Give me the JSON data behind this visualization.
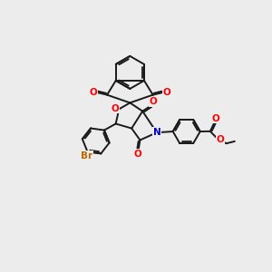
{
  "bg_color": "#ececec",
  "bond_color": "#1a1a1a",
  "bond_lw": 1.4,
  "atom_colors": {
    "O": "#ff0000",
    "N": "#0000cc",
    "Br": "#bb6600"
  },
  "fs": 7.5
}
